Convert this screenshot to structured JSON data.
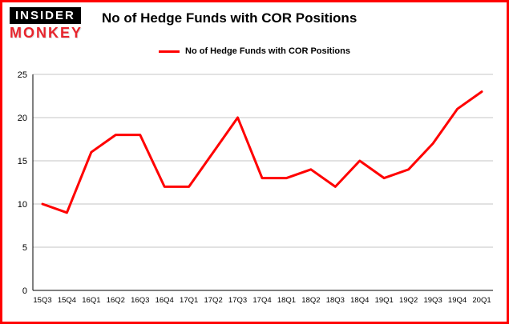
{
  "branding": {
    "logo_top": "INSIDER",
    "logo_bottom": "MONKEY"
  },
  "header": {
    "title": "No of Hedge Funds with COR Positions"
  },
  "legend": {
    "label": "No of Hedge Funds with COR Positions",
    "color": "#ff0000"
  },
  "colors": {
    "frame_border": "#ff0000",
    "line": "#ff0000",
    "grid": "#c6c6c6"
  },
  "chart_data": {
    "type": "line",
    "title": "No of Hedge Funds with COR Positions",
    "series_name": "No of Hedge Funds with COR Positions",
    "categories": [
      "15Q3",
      "15Q4",
      "16Q1",
      "16Q2",
      "16Q3",
      "16Q4",
      "17Q1",
      "17Q2",
      "17Q3",
      "17Q4",
      "18Q1",
      "18Q2",
      "18Q3",
      "18Q4",
      "19Q1",
      "19Q2",
      "19Q3",
      "19Q4",
      "20Q1"
    ],
    "values": [
      10,
      9,
      16,
      18,
      18,
      12,
      12,
      16,
      20,
      13,
      13,
      14,
      12,
      15,
      13,
      14,
      17,
      21,
      23
    ],
    "line_color": "#ff0000",
    "xlabel": "",
    "ylabel": "",
    "ylim": [
      0,
      25
    ],
    "yticks": [
      0,
      5,
      10,
      15,
      20,
      25
    ],
    "grid": true,
    "legend_position": "top"
  }
}
